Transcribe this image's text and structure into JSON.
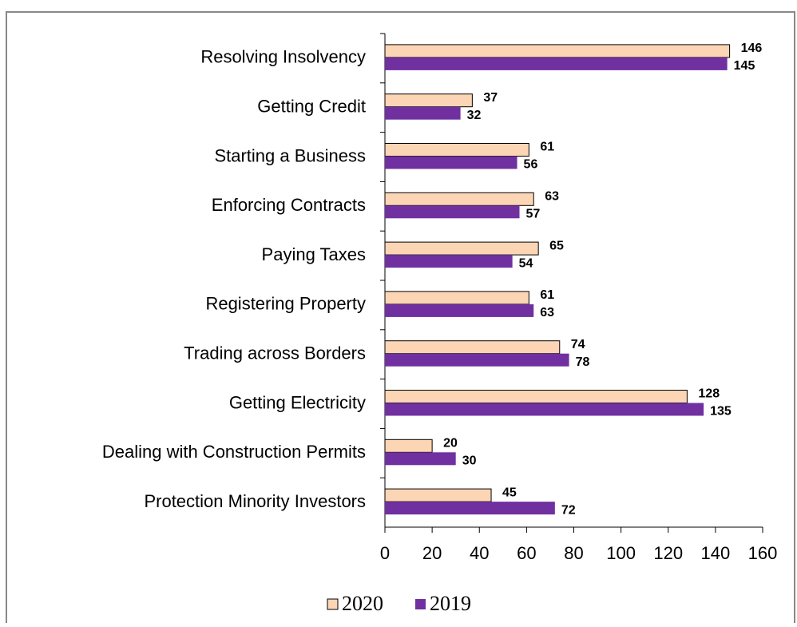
{
  "chart_data": {
    "type": "hbar",
    "categories": [
      "Resolving Insolvency",
      "Getting Credit",
      "Starting a Business",
      "Enforcing Contracts",
      "Paying Taxes",
      "Registering Property",
      "Trading across Borders",
      "Getting Electricity",
      "Dealing with Construction Permits",
      "Protection Minority Investors"
    ],
    "series": [
      {
        "name": "2020",
        "color": "#fcd5b5",
        "values": [
          146,
          37,
          61,
          63,
          65,
          61,
          74,
          128,
          20,
          45
        ]
      },
      {
        "name": "2019",
        "color": "#7030a0",
        "values": [
          145,
          32,
          56,
          57,
          54,
          63,
          78,
          135,
          30,
          72
        ]
      }
    ],
    "xlim": [
      0,
      160
    ],
    "xticks": [
      0,
      20,
      40,
      60,
      80,
      100,
      120,
      140,
      160
    ],
    "legend": "bottom"
  }
}
